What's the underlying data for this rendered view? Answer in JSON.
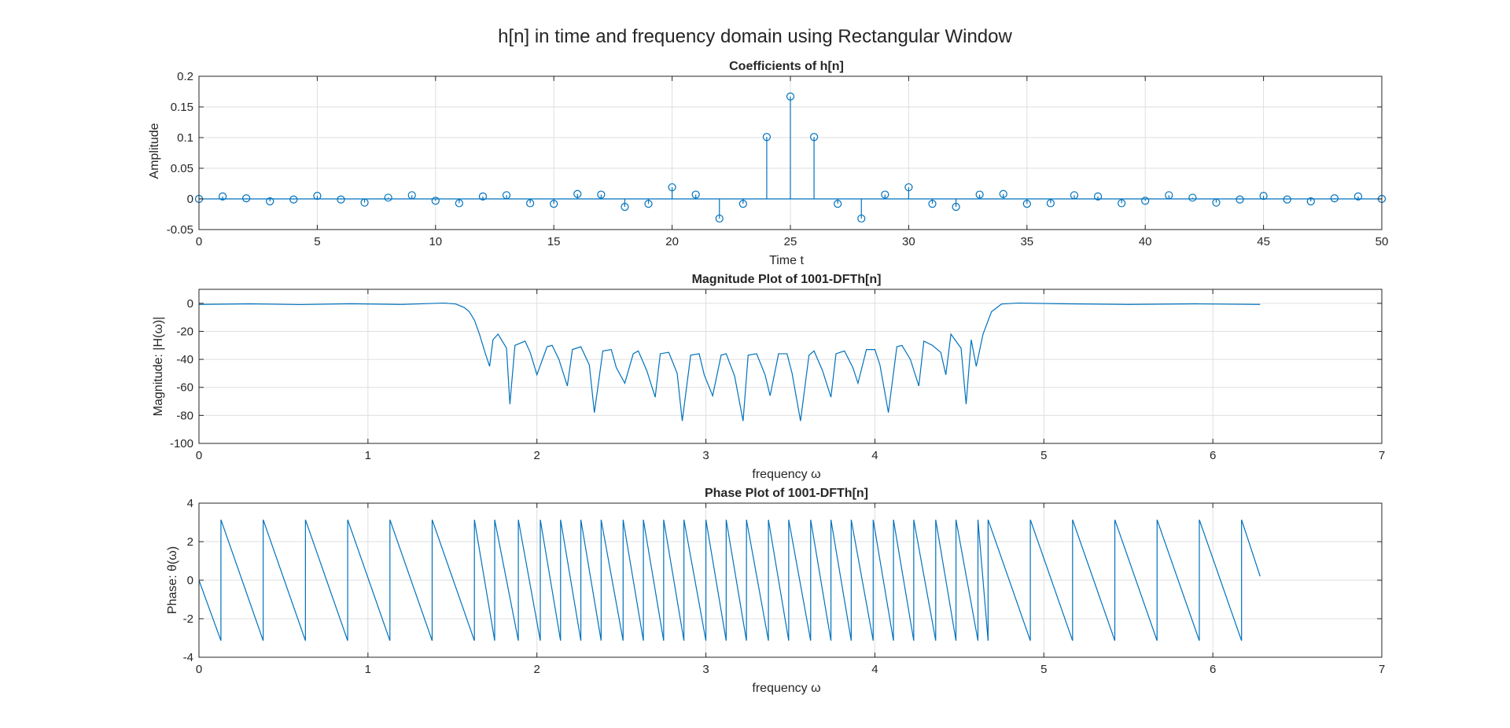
{
  "figure": {
    "title": "h[n] in time and frequency domain using Rectangular Window",
    "series_color": "#0072BD"
  },
  "chart_data": [
    {
      "type": "stem",
      "title": "Coefficients of h[n]",
      "xlabel": "Time t",
      "ylabel": "Amplitude",
      "xlim": [
        0,
        50
      ],
      "ylim": [
        -0.05,
        0.2
      ],
      "xticks": [
        0,
        5,
        10,
        15,
        20,
        25,
        30,
        35,
        40,
        45,
        50
      ],
      "yticks": [
        -0.05,
        0,
        0.05,
        0.1,
        0.15,
        0.2
      ],
      "grid": true,
      "series": [
        {
          "x": [
            0,
            1,
            2,
            3,
            4,
            5,
            6,
            7,
            8,
            9,
            10,
            11,
            12,
            13,
            14,
            15,
            16,
            17,
            18,
            19,
            20,
            21,
            22,
            23,
            24,
            25,
            26,
            27,
            28,
            29,
            30,
            31,
            32,
            33,
            34,
            35,
            36,
            37,
            38,
            39,
            40,
            41,
            42,
            43,
            44,
            45,
            46,
            47,
            48,
            49,
            50
          ],
          "y": [
            0,
            0.004,
            0.001,
            -0.004,
            -0.001,
            0.005,
            -0.001,
            -0.006,
            0.002,
            0.006,
            -0.003,
            -0.007,
            0.004,
            0.006,
            -0.007,
            -0.008,
            0.008,
            0.007,
            -0.013,
            -0.008,
            0.019,
            0.007,
            -0.032,
            -0.008,
            0.101,
            0.167,
            0.101,
            -0.008,
            -0.032,
            0.007,
            0.019,
            -0.008,
            -0.013,
            0.007,
            0.008,
            -0.008,
            -0.007,
            0.006,
            0.004,
            -0.007,
            -0.003,
            0.006,
            0.002,
            -0.006,
            -0.001,
            0.005,
            -0.001,
            -0.004,
            0.001,
            0.004,
            0
          ]
        }
      ]
    },
    {
      "type": "line",
      "title": "Magnitude Plot of 1001-DFTh[n]",
      "xlabel": "frequency ω",
      "ylabel": "Magnitude: |H(ω)|",
      "xlim": [
        0,
        7
      ],
      "ylim": [
        -100,
        10
      ],
      "xticks": [
        0,
        1,
        2,
        3,
        4,
        5,
        6,
        7
      ],
      "yticks": [
        -100,
        -80,
        -60,
        -40,
        -20,
        0
      ],
      "grid": true,
      "series": [
        {
          "x": [
            0,
            0.3,
            0.6,
            0.9,
            1.2,
            1.35,
            1.45,
            1.52,
            1.57,
            1.6,
            1.63,
            1.66,
            1.69,
            1.72,
            1.74,
            1.77,
            1.82,
            1.84,
            1.87,
            1.93,
            1.96,
            2.0,
            2.06,
            2.09,
            2.13,
            2.18,
            2.21,
            2.26,
            2.31,
            2.34,
            2.39,
            2.44,
            2.47,
            2.52,
            2.57,
            2.6,
            2.65,
            2.7,
            2.73,
            2.78,
            2.83,
            2.86,
            2.91,
            2.96,
            2.99,
            3.04,
            3.09,
            3.12,
            3.17,
            3.22,
            3.25,
            3.3,
            3.35,
            3.38,
            3.43,
            3.48,
            3.51,
            3.56,
            3.61,
            3.64,
            3.69,
            3.74,
            3.77,
            3.82,
            3.87,
            3.9,
            3.95,
            4.0,
            4.03,
            4.08,
            4.13,
            4.16,
            4.21,
            4.26,
            4.29,
            4.34,
            4.39,
            4.42,
            4.45,
            4.51,
            4.54,
            4.57,
            4.6,
            4.64,
            4.69,
            4.75,
            4.85,
            5.1,
            5.5,
            5.9,
            6.28
          ],
          "y": [
            -0.8,
            -0.4,
            -0.9,
            -0.3,
            -0.8,
            -0.2,
            0.2,
            -0.5,
            -3,
            -6,
            -12,
            -22,
            -34,
            -45,
            -26,
            -22,
            -32,
            -72,
            -30,
            -27,
            -35,
            -51,
            -31,
            -30,
            -40,
            -59,
            -33,
            -31,
            -44,
            -78,
            -34,
            -33,
            -46,
            -57,
            -36,
            -34,
            -48,
            -67,
            -36,
            -35,
            -50,
            -84,
            -37,
            -36,
            -51,
            -66,
            -37,
            -36,
            -52,
            -84,
            -37,
            -36,
            -51,
            -66,
            -36,
            -36,
            -50,
            -84,
            -37,
            -34,
            -48,
            -67,
            -36,
            -34,
            -46,
            -57,
            -33,
            -33,
            -44,
            -78,
            -31,
            -30,
            -40,
            -59,
            -27,
            -30,
            -35,
            -51,
            -22,
            -32,
            -72,
            -26,
            -45,
            -22,
            -6,
            -0.5,
            0.2,
            -0.3,
            -0.8,
            -0.4,
            -0.8
          ]
        }
      ]
    },
    {
      "type": "line",
      "title": "Phase Plot of 1001-DFTh[n]",
      "xlabel": "frequency ω",
      "ylabel": "Phase: θ(ω)",
      "xlim": [
        0,
        7
      ],
      "ylim": [
        -4,
        4
      ],
      "xticks": [
        0,
        1,
        2,
        3,
        4,
        5,
        6,
        7
      ],
      "yticks": [
        -4,
        -2,
        0,
        2,
        4
      ],
      "grid": true,
      "wrap_points": [
        0.13,
        0.38,
        0.63,
        0.88,
        1.13,
        1.38,
        1.63,
        1.75,
        1.89,
        2.02,
        2.14,
        2.26,
        2.38,
        2.51,
        2.63,
        2.75,
        2.87,
        3.0,
        3.12,
        3.24,
        3.37,
        3.49,
        3.62,
        3.74,
        3.86,
        3.99,
        4.11,
        4.23,
        4.36,
        4.48,
        4.61,
        4.67,
        4.92,
        5.17,
        5.42,
        5.67,
        5.92,
        6.17
      ],
      "series": [
        {
          "x_start": 0,
          "y_start": 0,
          "x_end": 6.28,
          "y_end": 0.2,
          "peak": 3.14,
          "trough": -3.14
        }
      ]
    }
  ]
}
